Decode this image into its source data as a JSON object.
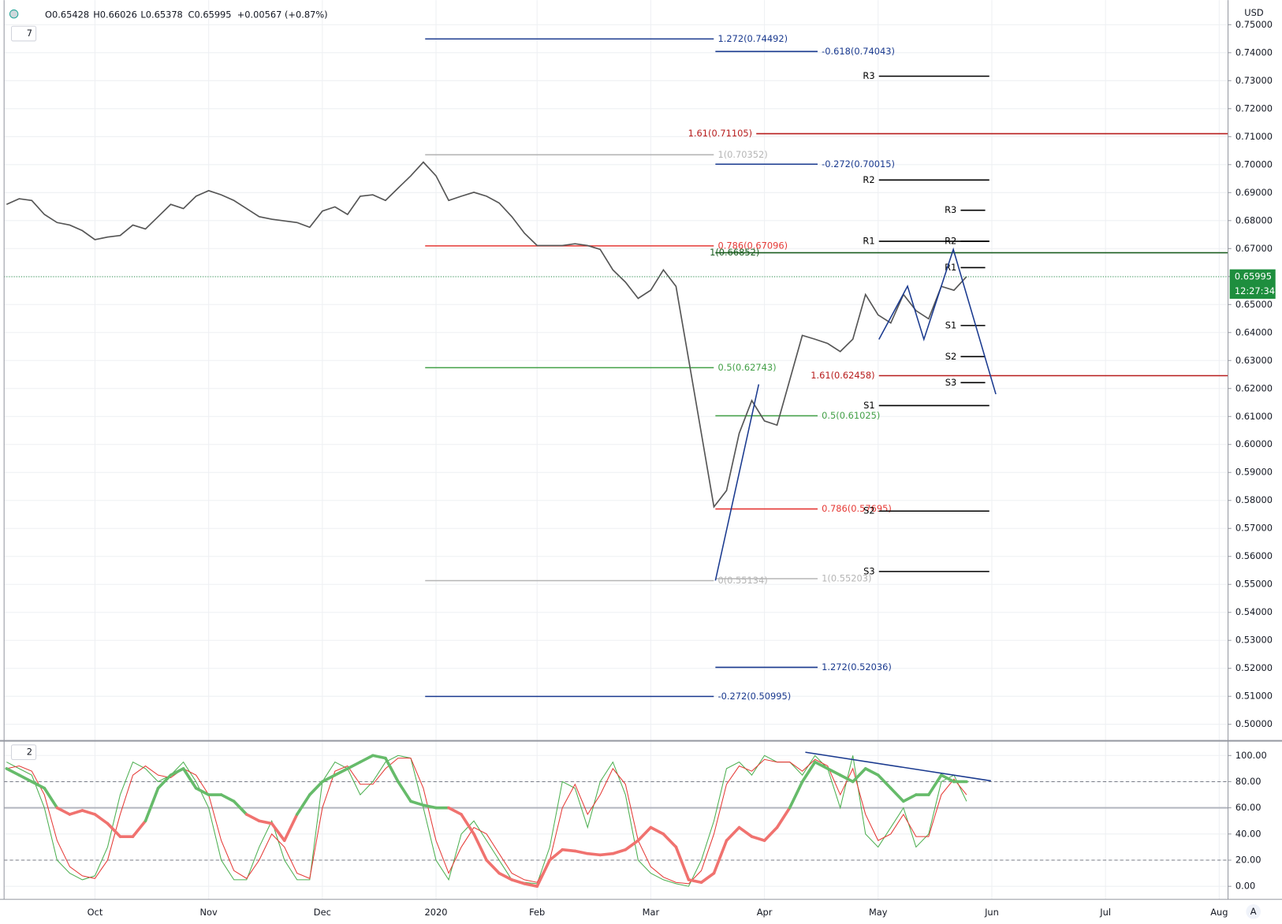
{
  "header": {
    "open": "O0.65428",
    "high": "H0.66026",
    "low": "L0.65378",
    "close": "C0.65995",
    "change": "+0.00567 (+0.87%)",
    "main_study": "7",
    "lower_study": "2",
    "currency": "USD",
    "countdown": "12:27:34",
    "scale_mode": "A"
  },
  "chart_data": [
    {
      "type": "line",
      "color": "#555555",
      "categories": [
        null,
        null,
        null,
        null,
        null,
        null,
        null,
        "Oct",
        null,
        null,
        null,
        null,
        null,
        null,
        null,
        null,
        "Nov",
        null,
        null,
        null,
        null,
        null,
        null,
        null,
        null,
        "Dec",
        null,
        null,
        null,
        null,
        null,
        null,
        null,
        null,
        "2020",
        null,
        null,
        null,
        null,
        null,
        null,
        null,
        "Feb",
        null,
        null,
        null,
        null,
        null,
        null,
        null,
        null,
        "Mar",
        null,
        null,
        null,
        null,
        null,
        null,
        null,
        null,
        "Apr",
        null,
        null,
        null,
        null,
        null,
        null,
        null,
        null,
        "May",
        null,
        null,
        null,
        null,
        null,
        null,
        null,
        null,
        "Jun",
        null,
        null,
        null,
        null,
        null,
        null,
        null,
        null,
        "Jul",
        null,
        null,
        null,
        null,
        null,
        null,
        null,
        null,
        "Aug"
      ],
      "values": [
        0.6858,
        0.6878,
        0.6872,
        0.6822,
        0.6793,
        0.6784,
        0.6764,
        0.6732,
        0.6741,
        0.6747,
        0.6784,
        0.677,
        0.6814,
        0.6858,
        0.6843,
        0.6887,
        0.6907,
        0.6892,
        0.6872,
        0.6843,
        0.6814,
        0.6805,
        0.6799,
        0.6793,
        0.6776,
        0.6834,
        0.6849,
        0.6822,
        0.6887,
        0.6892,
        0.6872,
        0.6916,
        0.696,
        0.7009,
        0.696,
        0.6872,
        0.6887,
        0.6901,
        0.6887,
        0.6863,
        0.6814,
        0.6755,
        0.6711,
        0.6711,
        0.6711,
        0.6717,
        0.6711,
        0.6697,
        0.6624,
        0.658,
        0.6522,
        0.6551,
        0.6624,
        0.6565,
        0.6303,
        0.604,
        0.5777,
        0.5835,
        0.604,
        0.6157,
        0.6084,
        0.6069,
        0.623,
        0.639,
        0.6376,
        0.6361,
        0.6332,
        0.6376,
        0.6536,
        0.6463,
        0.6434,
        0.6536,
        0.6478,
        0.6449,
        0.6565,
        0.6551,
        0.66,
        null,
        null,
        null,
        null,
        null,
        null,
        null,
        null,
        null,
        null,
        null,
        null,
        null,
        null,
        null,
        null,
        null,
        null,
        null,
        null
      ],
      "last_price": {
        "value": 0.65995,
        "label": "0.65995"
      },
      "last_price_color": "#1e8e3e",
      "ylim": [
        0.4944,
        0.7588
      ],
      "yticks": [
        {
          "value": 0.5,
          "label": "0.50000"
        },
        {
          "value": 0.51,
          "label": "0.51000"
        },
        {
          "value": 0.52,
          "label": "0.52000"
        },
        {
          "value": 0.53,
          "label": "0.53000"
        },
        {
          "value": 0.54,
          "label": "0.54000"
        },
        {
          "value": 0.55,
          "label": "0.55000"
        },
        {
          "value": 0.56,
          "label": "0.56000"
        },
        {
          "value": 0.57,
          "label": "0.57000"
        },
        {
          "value": 0.58,
          "label": "0.58000"
        },
        {
          "value": 0.59,
          "label": "0.59000"
        },
        {
          "value": 0.6,
          "label": "0.60000"
        },
        {
          "value": 0.61,
          "label": "0.61000"
        },
        {
          "value": 0.62,
          "label": "0.62000"
        },
        {
          "value": 0.63,
          "label": "0.63000"
        },
        {
          "value": 0.64,
          "label": "0.64000"
        },
        {
          "value": 0.65,
          "label": "0.65000"
        },
        {
          "value": 0.66,
          "label": "0.66000"
        },
        {
          "value": 0.67,
          "label": "0.67000"
        },
        {
          "value": 0.68,
          "label": "0.68000"
        },
        {
          "value": 0.69,
          "label": "0.69000"
        },
        {
          "value": 0.7,
          "label": "0.70000"
        },
        {
          "value": 0.71,
          "label": "0.71000"
        },
        {
          "value": 0.72,
          "label": "0.72000"
        },
        {
          "value": 0.73,
          "label": "0.73000"
        },
        {
          "value": 0.74,
          "label": "0.74000"
        },
        {
          "value": 0.75,
          "label": "0.75000"
        }
      ],
      "grid": true,
      "annotations": [
        {
          "label": "1.272(0.74492)",
          "value": 0.74492,
          "color": "#1a3a8f"
        },
        {
          "label": "-0.618(0.74043)",
          "value": 0.74043,
          "color": "#1a3a8f"
        },
        {
          "label": "R3",
          "value": 0.7316,
          "color": "#000000"
        },
        {
          "label": "1.61(0.71105)",
          "value": 0.71105,
          "color": "#b71c1c"
        },
        {
          "label": "1(0.70352)",
          "value": 0.70352,
          "color": "#b5b5b5"
        },
        {
          "label": "-0.272(0.70015)",
          "value": 0.70015,
          "color": "#1a3a8f"
        },
        {
          "label": "R2",
          "value": 0.6945,
          "color": "#000000"
        },
        {
          "label": "R3",
          "value": 0.6837,
          "color": "#000000"
        },
        {
          "label": "R1",
          "value": 0.6726,
          "color": "#000000"
        },
        {
          "label": "R2",
          "value": 0.6726,
          "color": "#000000"
        },
        {
          "label": "0.786(0.67096)",
          "value": 0.67096,
          "color": "#e53935"
        },
        {
          "label": "1(0.66852)",
          "value": 0.66852,
          "color": "#1b5e20"
        },
        {
          "label": "R1",
          "value": 0.6632,
          "color": "#000000"
        },
        {
          "label": "S1",
          "value": 0.6425,
          "color": "#000000"
        },
        {
          "label": "0.5(0.62743)",
          "value": 0.62743,
          "color": "#43a047"
        },
        {
          "label": "S2",
          "value": 0.6314,
          "color": "#000000"
        },
        {
          "label": "1.61(0.62458)",
          "value": 0.62458,
          "color": "#b71c1c"
        },
        {
          "label": "S3",
          "value": 0.6221,
          "color": "#000000"
        },
        {
          "label": "S1",
          "value": 0.6139,
          "color": "#000000"
        },
        {
          "label": "0.5(0.61025)",
          "value": 0.61025,
          "color": "#43a047"
        },
        {
          "label": "0.786(0.57695)",
          "value": 0.57695,
          "color": "#e53935"
        },
        {
          "label": "S2",
          "value": 0.5762,
          "color": "#000000"
        },
        {
          "label": "S3",
          "value": 0.5546,
          "color": "#000000"
        },
        {
          "label": "0(0.55134)",
          "value": 0.55134,
          "color": "#b5b5b5"
        },
        {
          "label": "1(0.55203)",
          "value": 0.55203,
          "color": "#b5b5b5"
        },
        {
          "label": "1.272(0.52036)",
          "value": 0.52036,
          "color": "#1a3a8f"
        },
        {
          "label": "-0.272(0.50995)",
          "value": 0.50995,
          "color": "#1a3a8f"
        }
      ]
    },
    {
      "type": "oscillator",
      "series": [
        {
          "color": "#4caf50",
          "width": 1,
          "values": [
            95,
            90,
            85,
            60,
            20,
            10,
            5,
            8,
            30,
            70,
            95,
            90,
            80,
            85,
            95,
            80,
            60,
            20,
            5,
            5,
            30,
            50,
            20,
            5,
            5,
            80,
            95,
            90,
            70,
            80,
            95,
            100,
            98,
            60,
            20,
            5,
            40,
            50,
            35,
            20,
            5,
            3,
            2,
            30,
            80,
            75,
            45,
            80,
            95,
            70,
            20,
            10,
            5,
            2,
            0,
            20,
            50,
            90,
            95,
            85,
            100,
            95,
            95,
            85,
            100,
            90,
            60,
            100,
            40,
            30,
            45,
            60,
            30,
            40,
            80,
            85,
            65,
            null,
            null,
            null,
            null,
            null,
            null,
            null,
            null,
            null,
            null,
            null,
            null,
            null,
            null,
            null,
            null,
            null,
            null,
            null,
            null
          ]
        },
        {
          "color": "#e53935",
          "width": 1,
          "values": [
            90,
            92,
            88,
            70,
            35,
            15,
            8,
            6,
            20,
            55,
            85,
            92,
            85,
            83,
            90,
            85,
            70,
            35,
            12,
            6,
            20,
            40,
            30,
            10,
            6,
            60,
            88,
            92,
            78,
            78,
            90,
            98,
            98,
            75,
            35,
            10,
            30,
            45,
            40,
            25,
            10,
            5,
            3,
            20,
            60,
            78,
            55,
            70,
            90,
            78,
            35,
            15,
            7,
            3,
            2,
            12,
            40,
            78,
            92,
            88,
            97,
            95,
            95,
            88,
            97,
            92,
            70,
            90,
            55,
            35,
            40,
            55,
            38,
            38,
            70,
            82,
            70,
            null,
            null,
            null,
            null,
            null,
            null,
            null,
            null,
            null,
            null,
            null,
            null,
            null,
            null,
            null,
            null,
            null,
            null,
            null,
            null
          ]
        },
        {
          "color": "#66bb6a",
          "color_below": "#f0726f",
          "width": 3.5,
          "values": [
            90,
            85,
            80,
            75,
            60,
            55,
            58,
            55,
            48,
            38,
            38,
            50,
            75,
            85,
            90,
            75,
            70,
            70,
            65,
            55,
            50,
            48,
            35,
            55,
            70,
            80,
            85,
            90,
            95,
            100,
            98,
            80,
            65,
            62,
            60,
            60,
            55,
            40,
            20,
            10,
            5,
            2,
            0,
            20,
            28,
            27,
            25,
            24,
            25,
            28,
            35,
            45,
            40,
            30,
            5,
            3,
            10,
            35,
            45,
            38,
            35,
            45,
            60,
            80,
            95,
            90,
            85,
            80,
            90,
            85,
            75,
            65,
            70,
            70,
            85,
            80,
            80,
            null,
            null,
            null,
            null,
            null,
            null,
            null,
            null,
            null,
            null,
            null,
            null,
            null,
            null,
            null,
            null,
            null,
            null,
            null,
            null
          ]
        }
      ],
      "midline": 60,
      "levels": [
        20,
        80
      ],
      "ylim": [
        -10,
        110
      ],
      "yticks": [
        {
          "value": 0,
          "label": "0.00"
        },
        {
          "value": 20,
          "label": "20.00"
        },
        {
          "value": 40,
          "label": "40.00"
        },
        {
          "value": 60,
          "label": "60.00"
        },
        {
          "value": 80,
          "label": "80.00"
        },
        {
          "value": 100,
          "label": "100.00"
        }
      ],
      "grid": true
    }
  ]
}
